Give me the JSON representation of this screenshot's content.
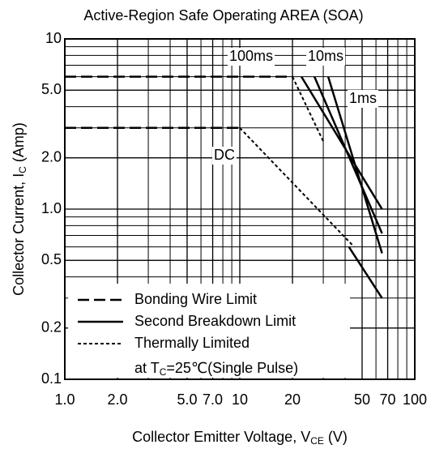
{
  "chart_data": {
    "type": "line",
    "title": "Active-Region Safe Operating AREA (SOA)",
    "xlabel": [
      "Collector Emitter Voltage, V",
      "CE",
      " (V)"
    ],
    "ylabel": [
      "Collector Current, I",
      "C",
      " (Amp)"
    ],
    "xscale": "log",
    "yscale": "log",
    "grid": true,
    "legend": "lower left",
    "xlim": [
      1,
      100
    ],
    "ylim": [
      0.1,
      10
    ],
    "xticks": [
      {
        "value": 1,
        "label": "1.0"
      },
      {
        "value": 2,
        "label": "2.0"
      },
      {
        "value": 5,
        "label": "5.0"
      },
      {
        "value": 7,
        "label": "7.0"
      },
      10,
      20,
      50,
      70,
      100
    ],
    "yticks": [
      10,
      {
        "value": 5,
        "label": "5.0"
      },
      {
        "value": 2,
        "label": "2.0"
      },
      {
        "value": 1,
        "label": "1.0"
      },
      0.5,
      0.2,
      0.1
    ],
    "series": [
      {
        "name": "Bonding Wire Limit",
        "color": "#000000",
        "style": "dashed",
        "x": [
          1,
          20,
          null,
          1,
          10
        ],
        "values": [
          6,
          6,
          null,
          3,
          3
        ]
      },
      {
        "name": "Second Breakdown Limit",
        "color": "#000000",
        "style": "solid",
        "x": [
          22.5,
          65,
          null,
          26.7,
          65,
          null,
          32,
          65,
          null,
          42,
          65
        ],
        "values": [
          6,
          1.0,
          null,
          6,
          0.72,
          null,
          6,
          0.55,
          null,
          0.6,
          0.3
        ]
      },
      {
        "name": "Thermally Limited",
        "color": "#000000",
        "style": "dotted",
        "x": [
          10,
          45,
          null,
          20,
          30
        ],
        "values": [
          3,
          0.6,
          null,
          6,
          2.5
        ]
      }
    ],
    "legend_note": [
      "at T",
      "C",
      "=25℃(Single Pulse)"
    ],
    "annotations": [
      "100ms",
      "10ms",
      "1ms",
      "DC"
    ]
  }
}
